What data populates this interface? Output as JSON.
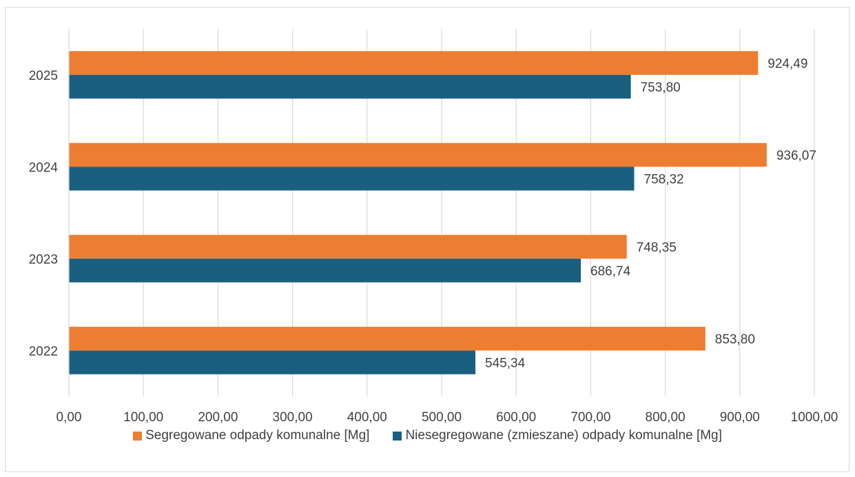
{
  "chart_data": {
    "type": "bar",
    "orientation": "horizontal",
    "categories": [
      "2022",
      "2023",
      "2024",
      "2025"
    ],
    "series": [
      {
        "name": "Segregowane odpady komunalne [Mg]",
        "color": "#ED7D31",
        "values": [
          853.8,
          748.35,
          936.07,
          924.49
        ],
        "labels": [
          "853,80",
          "748,35",
          "936,07",
          "924,49"
        ]
      },
      {
        "name": "Niesegregowane (zmieszane) odpady komunalne [Mg]",
        "color": "#1A5F7F",
        "values": [
          545.34,
          686.74,
          758.32,
          753.8
        ],
        "labels": [
          "545,34",
          "686,74",
          "758,32",
          "753,80"
        ]
      }
    ],
    "xlim": [
      0,
      1000
    ],
    "x_ticks": [
      0,
      100,
      200,
      300,
      400,
      500,
      600,
      700,
      800,
      900,
      1000
    ],
    "x_tick_labels": [
      "0,00",
      "100,00",
      "200,00",
      "300,00",
      "400,00",
      "500,00",
      "600,00",
      "700,00",
      "800,00",
      "900,00",
      "1000,00"
    ],
    "title": "",
    "xlabel": "",
    "ylabel": "",
    "grid": "vertical",
    "legend": "bottom",
    "gridline_color": "#d9d9d9"
  }
}
